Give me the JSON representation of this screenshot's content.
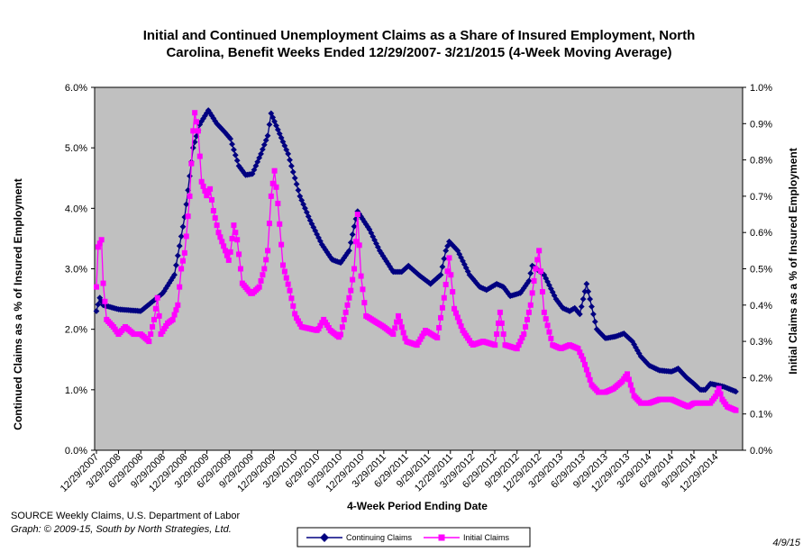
{
  "chart_data": {
    "type": "line",
    "title_line1": "Initial and Continued Unemployment Claims as a Share of Insured Employment, North",
    "title_line2": "Carolina, Benefit Weeks Ended 12/29/2007- 3/21/2015 (4-Week Moving Average)",
    "xlabel": "4-Week Period Ending Date",
    "ylabel_left": "Continued Claims as a % of Insured Employment",
    "ylabel_right": "Initial Claims as a % of Insured Employment",
    "y_left_range": [
      0,
      6
    ],
    "y_right_range": [
      0,
      1
    ],
    "y_left_ticks": [
      "0.0%",
      "1.0%",
      "2.0%",
      "3.0%",
      "4.0%",
      "5.0%",
      "6.0%"
    ],
    "y_right_ticks": [
      "0.0%",
      "0.1%",
      "0.2%",
      "0.3%",
      "0.4%",
      "0.5%",
      "0.6%",
      "0.7%",
      "0.8%",
      "0.9%",
      "1.0%"
    ],
    "x_tick_labels": [
      "12/29/2007",
      "3/29/2008",
      "6/29/2008",
      "9/29/2008",
      "12/29/2008",
      "3/29/2009",
      "6/29/2009",
      "9/29/2009",
      "12/29/2009",
      "3/29/2010",
      "6/29/2010",
      "9/29/2010",
      "12/29/2010",
      "3/29/2011",
      "6/29/2011",
      "9/29/2011",
      "12/29/2011",
      "3/29/2012",
      "6/29/2012",
      "9/29/2012",
      "12/29/2012",
      "3/29/2013",
      "6/29/2013",
      "9/29/2013",
      "12/29/2013",
      "3/29/2014",
      "6/29/2014",
      "9/29/2014",
      "12/29/2014"
    ],
    "grid": false,
    "plot_background": "#c0c0c0",
    "legend_position": "bottom",
    "series": [
      {
        "name": "Continuing Claims",
        "axis": "left",
        "color": "#000080",
        "marker": "diamond",
        "keypoints": [
          [
            "12/29/2007",
            2.3
          ],
          [
            "1/12/2008",
            2.52
          ],
          [
            "1/26/2008",
            2.4
          ],
          [
            "3/29/2008",
            2.33
          ],
          [
            "6/29/2008",
            2.3
          ],
          [
            "9/29/2008",
            2.6
          ],
          [
            "11/15/2008",
            2.9
          ],
          [
            "12/29/2008",
            3.9
          ],
          [
            "1/31/2009",
            5.0
          ],
          [
            "3/1/2009",
            5.4
          ],
          [
            "4/4/2009",
            5.62
          ],
          [
            "5/9/2009",
            5.4
          ],
          [
            "6/13/2009",
            5.25
          ],
          [
            "7/4/2009",
            5.15
          ],
          [
            "8/8/2009",
            4.7
          ],
          [
            "9/5/2009",
            4.55
          ],
          [
            "10/3/2009",
            4.57
          ],
          [
            "11/7/2009",
            4.9
          ],
          [
            "12/5/2009",
            5.2
          ],
          [
            "12/19/2009",
            5.57
          ],
          [
            "1/16/2010",
            5.3
          ],
          [
            "2/27/2010",
            4.9
          ],
          [
            "4/17/2010",
            4.2
          ],
          [
            "5/29/2010",
            3.8
          ],
          [
            "7/17/2010",
            3.4
          ],
          [
            "8/28/2010",
            3.15
          ],
          [
            "10/2/2010",
            3.1
          ],
          [
            "11/6/2010",
            3.3
          ],
          [
            "11/27/2010",
            3.7
          ],
          [
            "12/11/2010",
            3.95
          ],
          [
            "1/29/2011",
            3.65
          ],
          [
            "3/12/2011",
            3.3
          ],
          [
            "5/7/2011",
            2.95
          ],
          [
            "6/11/2011",
            2.95
          ],
          [
            "7/9/2011",
            3.05
          ],
          [
            "8/20/2011",
            2.9
          ],
          [
            "10/8/2011",
            2.75
          ],
          [
            "11/19/2011",
            2.9
          ],
          [
            "12/10/2011",
            3.3
          ],
          [
            "12/24/2011",
            3.45
          ],
          [
            "1/28/2012",
            3.3
          ],
          [
            "3/17/2012",
            2.9
          ],
          [
            "4/28/2012",
            2.7
          ],
          [
            "5/26/2012",
            2.65
          ],
          [
            "7/7/2012",
            2.75
          ],
          [
            "8/4/2012",
            2.7
          ],
          [
            "9/1/2012",
            2.55
          ],
          [
            "10/13/2012",
            2.6
          ],
          [
            "11/17/2012",
            2.8
          ],
          [
            "12/1/2012",
            3.05
          ],
          [
            "1/19/2013",
            2.9
          ],
          [
            "3/9/2013",
            2.5
          ],
          [
            "4/6/2013",
            2.35
          ],
          [
            "5/4/2013",
            2.3
          ],
          [
            "5/25/2013",
            2.35
          ],
          [
            "6/15/2013",
            2.25
          ],
          [
            "6/29/2013",
            2.5
          ],
          [
            "7/13/2013",
            2.75
          ],
          [
            "7/27/2013",
            2.5
          ],
          [
            "8/24/2013",
            2.0
          ],
          [
            "9/29/2013",
            1.85
          ],
          [
            "11/9/2013",
            1.88
          ],
          [
            "12/14/2013",
            1.93
          ],
          [
            "1/18/2014",
            1.8
          ],
          [
            "2/22/2014",
            1.55
          ],
          [
            "3/29/2014",
            1.4
          ],
          [
            "5/10/2014",
            1.32
          ],
          [
            "6/29/2014",
            1.3
          ],
          [
            "7/26/2014",
            1.35
          ],
          [
            "8/30/2014",
            1.2
          ],
          [
            "9/29/2014",
            1.1
          ],
          [
            "10/25/2014",
            1.0
          ],
          [
            "11/15/2014",
            1.0
          ],
          [
            "12/6/2014",
            1.1
          ],
          [
            "12/29/2014",
            1.08
          ],
          [
            "1/31/2015",
            1.05
          ],
          [
            "3/21/2015",
            0.97
          ]
        ]
      },
      {
        "name": "Initial Claims",
        "axis": "right",
        "color": "#ff00ff",
        "marker": "square",
        "keypoints": [
          [
            "12/29/2007",
            0.45
          ],
          [
            "1/5/2008",
            0.56
          ],
          [
            "1/19/2008",
            0.58
          ],
          [
            "1/26/2008",
            0.46
          ],
          [
            "2/9/2008",
            0.36
          ],
          [
            "3/8/2008",
            0.34
          ],
          [
            "3/29/2008",
            0.32
          ],
          [
            "4/26/2008",
            0.34
          ],
          [
            "5/31/2008",
            0.32
          ],
          [
            "6/29/2008",
            0.32
          ],
          [
            "8/2/2008",
            0.3
          ],
          [
            "8/23/2008",
            0.36
          ],
          [
            "9/6/2008",
            0.42
          ],
          [
            "9/20/2008",
            0.32
          ],
          [
            "10/18/2008",
            0.35
          ],
          [
            "11/8/2008",
            0.36
          ],
          [
            "11/29/2008",
            0.4
          ],
          [
            "12/13/2008",
            0.5
          ],
          [
            "12/29/2008",
            0.55
          ],
          [
            "1/17/2009",
            0.7
          ],
          [
            "1/31/2009",
            0.88
          ],
          [
            "2/7/2009",
            0.93
          ],
          [
            "2/21/2009",
            0.88
          ],
          [
            "3/7/2009",
            0.74
          ],
          [
            "3/29/2009",
            0.7
          ],
          [
            "4/11/2009",
            0.72
          ],
          [
            "4/25/2009",
            0.66
          ],
          [
            "5/16/2009",
            0.6
          ],
          [
            "6/13/2009",
            0.55
          ],
          [
            "6/29/2009",
            0.52
          ],
          [
            "7/18/2009",
            0.62
          ],
          [
            "8/1/2009",
            0.58
          ],
          [
            "8/22/2009",
            0.46
          ],
          [
            "9/29/2009",
            0.43
          ],
          [
            "10/31/2009",
            0.45
          ],
          [
            "11/21/2009",
            0.5
          ],
          [
            "12/5/2009",
            0.55
          ],
          [
            "12/19/2009",
            0.7
          ],
          [
            "1/2/2010",
            0.77
          ],
          [
            "1/16/2010",
            0.68
          ],
          [
            "2/6/2010",
            0.51
          ],
          [
            "3/6/2010",
            0.44
          ],
          [
            "3/29/2010",
            0.37
          ],
          [
            "4/24/2010",
            0.34
          ],
          [
            "6/29/2010",
            0.33
          ],
          [
            "7/24/2010",
            0.36
          ],
          [
            "8/21/2010",
            0.33
          ],
          [
            "9/29/2010",
            0.31
          ],
          [
            "10/16/2010",
            0.36
          ],
          [
            "11/13/2010",
            0.44
          ],
          [
            "11/27/2010",
            0.5
          ],
          [
            "12/11/2010",
            0.65
          ],
          [
            "12/25/2010",
            0.48
          ],
          [
            "1/15/2011",
            0.37
          ],
          [
            "3/29/2011",
            0.34
          ],
          [
            "5/7/2011",
            0.32
          ],
          [
            "5/28/2011",
            0.37
          ],
          [
            "6/29/2011",
            0.3
          ],
          [
            "8/13/2011",
            0.29
          ],
          [
            "9/17/2011",
            0.33
          ],
          [
            "11/5/2011",
            0.31
          ],
          [
            "12/3/2011",
            0.42
          ],
          [
            "12/24/2011",
            0.53
          ],
          [
            "1/14/2012",
            0.39
          ],
          [
            "2/18/2012",
            0.33
          ],
          [
            "3/29/2012",
            0.29
          ],
          [
            "5/12/2012",
            0.3
          ],
          [
            "6/30/2012",
            0.29
          ],
          [
            "7/21/2012",
            0.38
          ],
          [
            "8/11/2012",
            0.29
          ],
          [
            "9/29/2012",
            0.28
          ],
          [
            "10/27/2012",
            0.32
          ],
          [
            "11/24/2012",
            0.4
          ],
          [
            "12/15/2012",
            0.5
          ],
          [
            "12/29/2012",
            0.55
          ],
          [
            "1/19/2013",
            0.38
          ],
          [
            "2/23/2013",
            0.29
          ],
          [
            "3/29/2013",
            0.28
          ],
          [
            "5/4/2013",
            0.29
          ],
          [
            "6/8/2013",
            0.28
          ],
          [
            "6/29/2013",
            0.25
          ],
          [
            "8/3/2013",
            0.18
          ],
          [
            "8/31/2013",
            0.16
          ],
          [
            "9/29/2013",
            0.16
          ],
          [
            "11/2/2013",
            0.17
          ],
          [
            "12/7/2013",
            0.19
          ],
          [
            "12/28/2013",
            0.21
          ],
          [
            "1/25/2014",
            0.15
          ],
          [
            "2/22/2014",
            0.13
          ],
          [
            "3/29/2014",
            0.13
          ],
          [
            "5/10/2014",
            0.14
          ],
          [
            "6/29/2014",
            0.14
          ],
          [
            "8/2/2014",
            0.13
          ],
          [
            "9/6/2014",
            0.12
          ],
          [
            "9/29/2014",
            0.13
          ],
          [
            "11/1/2014",
            0.13
          ],
          [
            "12/6/2014",
            0.13
          ],
          [
            "12/29/2014",
            0.15
          ],
          [
            "1/10/2015",
            0.17
          ],
          [
            "1/24/2015",
            0.14
          ],
          [
            "2/14/2015",
            0.12
          ],
          [
            "3/21/2015",
            0.11
          ]
        ]
      }
    ]
  },
  "source_note": "SOURCE  Weekly Claims, U.S. Department of Labor",
  "graph_note": "Graph: © 2009-15, South by North Strategies, Ltd.",
  "date_stamp": "4/9/15"
}
